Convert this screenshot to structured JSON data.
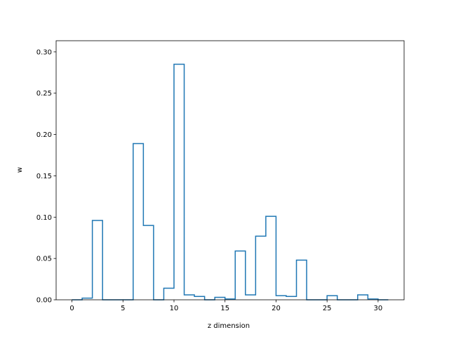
{
  "chart_data": {
    "type": "bar",
    "style": "step-histogram",
    "title": "",
    "xlabel": "z dimension",
    "ylabel": "w",
    "xlim": [
      -1.55,
      32.55
    ],
    "ylim": [
      0,
      0.3135
    ],
    "xticks": [
      0,
      5,
      10,
      15,
      20,
      25,
      30
    ],
    "yticks": [
      0.0,
      0.05,
      0.1,
      0.15,
      0.2,
      0.25,
      0.3
    ],
    "ytick_labels": [
      "0.00",
      "0.05",
      "0.10",
      "0.15",
      "0.20",
      "0.25",
      "0.30"
    ],
    "grid": false,
    "bin_edges": [
      0,
      1,
      2,
      3,
      4,
      5,
      6,
      7,
      8,
      9,
      10,
      11,
      12,
      13,
      14,
      15,
      16,
      17,
      18,
      19,
      20,
      21,
      22,
      23,
      24,
      25,
      26,
      27,
      28,
      29,
      30,
      31
    ],
    "values": [
      0.0,
      0.002,
      0.096,
      0.0,
      0.0,
      0.0,
      0.189,
      0.09,
      0.0,
      0.014,
      0.285,
      0.006,
      0.004,
      0.0,
      0.003,
      0.001,
      0.059,
      0.006,
      0.077,
      0.101,
      0.005,
      0.004,
      0.048,
      0.0,
      0.0,
      0.005,
      0.0,
      0.0,
      0.006,
      0.001,
      0.0
    ],
    "color": "#1f77b4"
  }
}
